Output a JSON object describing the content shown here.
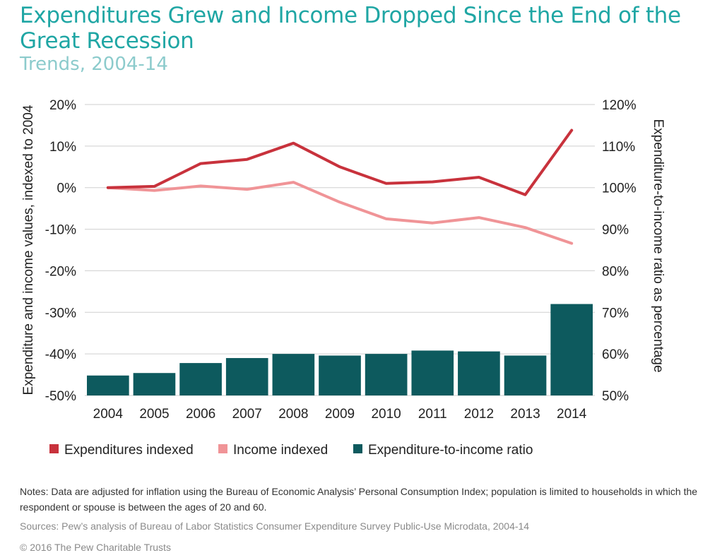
{
  "header": {
    "title": "Expenditures Grew and Income Dropped Since the End of the Great Recession",
    "subtitle": "Trends, 2004-14"
  },
  "chart_data": {
    "type": "bar+line",
    "title": "Expenditures Grew and Income Dropped Since the End of the Great Recession",
    "subtitle": "Trends, 2004-14",
    "categories": [
      "2004",
      "2005",
      "2006",
      "2007",
      "2008",
      "2009",
      "2010",
      "2011",
      "2012",
      "2013",
      "2014"
    ],
    "left_axis": {
      "label": "Expenditure and income values, indexed to 2004",
      "range": [
        -50,
        20
      ],
      "ticks": [
        20,
        10,
        0,
        -10,
        -20,
        -30,
        -40,
        -50
      ],
      "tick_labels": [
        "20%",
        "10%",
        "0%",
        "-10%",
        "-20%",
        "-30%",
        "-40%",
        "-50%"
      ]
    },
    "right_axis": {
      "label": "Expenditure-to-income ratio as percentage",
      "range": [
        50,
        120
      ],
      "ticks": [
        120,
        110,
        100,
        90,
        80,
        70,
        60,
        50
      ],
      "tick_labels": [
        "120%",
        "110%",
        "100%",
        "90%",
        "80%",
        "70%",
        "60%",
        "50%"
      ]
    },
    "grid": "horizontal",
    "legend_position": "bottom-left",
    "series": [
      {
        "name": "Expenditures indexed",
        "type": "line",
        "axis": "left",
        "color": "#c8323c",
        "values": [
          0,
          0.3,
          5.8,
          6.8,
          10.7,
          5.0,
          1.0,
          1.4,
          2.5,
          -1.7,
          13.8
        ]
      },
      {
        "name": "Income indexed",
        "type": "line",
        "axis": "left",
        "color": "#f09497",
        "values": [
          0,
          -0.7,
          0.4,
          -0.4,
          1.3,
          -3.5,
          -7.5,
          -8.5,
          -7.2,
          -9.6,
          -13.4
        ]
      },
      {
        "name": "Expenditure-to-income ratio",
        "type": "bar",
        "axis": "right",
        "color": "#0d5a5e",
        "values": [
          54.8,
          55.4,
          57.8,
          59.0,
          60.0,
          59.6,
          60.0,
          60.8,
          60.6,
          59.6,
          72.0
        ]
      }
    ]
  },
  "footer": {
    "notes": "Notes: Data are adjusted for inflation using the Bureau of Economic Analysis’ Personal Consumption Index; population is limited to households in which the respondent or spouse is between the ages of 20 and 60.",
    "sources": "Sources: Pew’s analysis of Bureau of Labor Statistics Consumer Expenditure Survey Public-Use Microdata, 2004-14",
    "copyright": "© 2016 The Pew Charitable Trusts"
  }
}
